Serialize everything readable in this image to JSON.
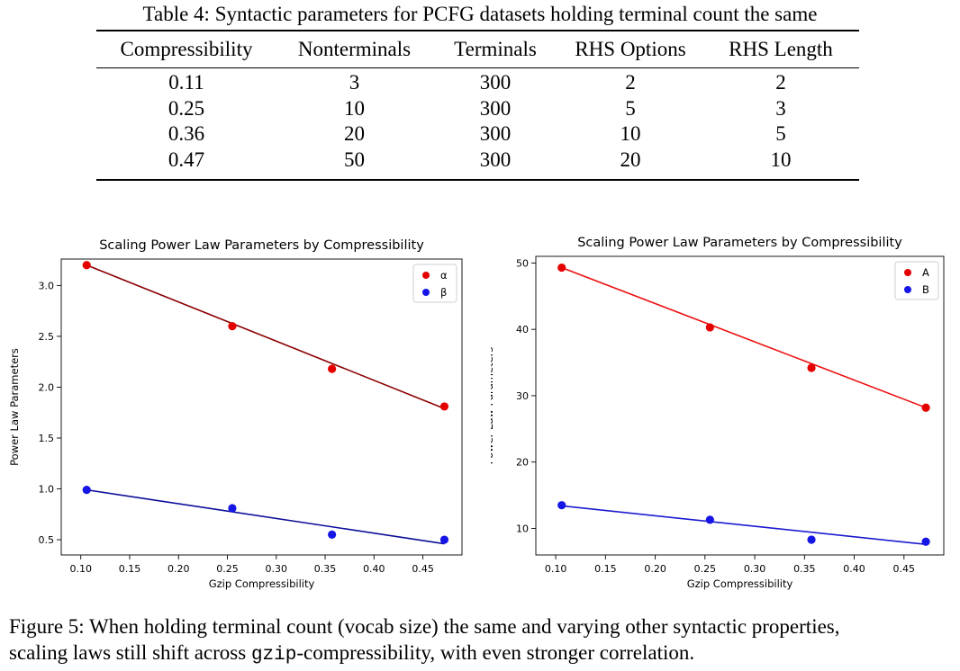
{
  "table": {
    "caption": "Table 4: Syntactic parameters for PCFG datasets holding terminal count the same",
    "headers": [
      "Compressibility",
      "Nonterminals",
      "Terminals",
      "RHS Options",
      "RHS Length"
    ],
    "rows": [
      [
        "0.11",
        "3",
        "300",
        "2",
        "2"
      ],
      [
        "0.25",
        "10",
        "300",
        "5",
        "3"
      ],
      [
        "0.36",
        "20",
        "300",
        "10",
        "5"
      ],
      [
        "0.47",
        "50",
        "300",
        "20",
        "10"
      ]
    ]
  },
  "chart_data": [
    {
      "type": "scatter",
      "title": "Scaling Power Law Parameters by Compressibility",
      "xlabel": "Gzip Compressibility",
      "ylabel": "Power Law Parameters",
      "xlim": [
        0.08,
        0.49
      ],
      "ylim": [
        0.35,
        3.26
      ],
      "xticks": [
        0.1,
        0.15,
        0.2,
        0.25,
        0.3,
        0.35,
        0.4,
        0.45
      ],
      "xtick_labels": [
        "0.10",
        "0.15",
        "0.20",
        "0.25",
        "0.30",
        "0.35",
        "0.40",
        "0.45"
      ],
      "yticks": [
        0.5,
        1.0,
        1.5,
        2.0,
        2.5,
        3.0
      ],
      "ytick_labels": [
        "0.5",
        "1.0",
        "1.5",
        "2.0",
        "2.5",
        "3.0"
      ],
      "legend_position": "top-right",
      "series": [
        {
          "name": "α",
          "x": [
            0.106,
            0.255,
            0.357,
            0.472
          ],
          "y": [
            3.2,
            2.6,
            2.18,
            1.81
          ],
          "color": "#e50000",
          "fit": {
            "x": [
              0.106,
              0.472
            ],
            "y": [
              3.2,
              1.79
            ]
          },
          "fit_color": "#8b0000"
        },
        {
          "name": "β",
          "x": [
            0.106,
            0.255,
            0.357,
            0.472
          ],
          "y": [
            0.99,
            0.81,
            0.55,
            0.5
          ],
          "color": "#1515e6",
          "fit": {
            "x": [
              0.106,
              0.472
            ],
            "y": [
              0.99,
              0.46
            ]
          },
          "fit_color": "#0d0d9a"
        }
      ]
    },
    {
      "type": "scatter",
      "title": "Scaling Power Law Parameters by Compressibility",
      "xlabel": "Gzip Compressibility",
      "ylabel": "Power Law Parameters",
      "xlim": [
        0.08,
        0.49
      ],
      "ylim": [
        6.0,
        51.0
      ],
      "xticks": [
        0.1,
        0.15,
        0.2,
        0.25,
        0.3,
        0.35,
        0.4,
        0.45
      ],
      "xtick_labels": [
        "0.10",
        "0.15",
        "0.20",
        "0.25",
        "0.30",
        "0.35",
        "0.40",
        "0.45"
      ],
      "yticks": [
        10,
        20,
        30,
        40,
        50
      ],
      "ytick_labels": [
        "10",
        "20",
        "30",
        "40",
        "50"
      ],
      "legend_position": "top-right",
      "series": [
        {
          "name": "A",
          "x": [
            0.106,
            0.255,
            0.357,
            0.472
          ],
          "y": [
            49.3,
            40.3,
            34.2,
            28.2
          ],
          "color": "#e50000",
          "fit": {
            "x": [
              0.106,
              0.472
            ],
            "y": [
              49.3,
              28.2
            ]
          },
          "fit_color": "#ee1111"
        },
        {
          "name": "B",
          "x": [
            0.106,
            0.255,
            0.357,
            0.472
          ],
          "y": [
            13.5,
            11.3,
            8.3,
            8.0
          ],
          "color": "#1515e6",
          "fit": {
            "x": [
              0.106,
              0.472
            ],
            "y": [
              13.4,
              7.6
            ]
          },
          "fit_color": "#1a1ad0"
        }
      ]
    }
  ],
  "caption": {
    "part1": "Figure 5: When holding terminal count (vocab size) the same and varying other syntactic properties,",
    "part2": "scaling laws still shift across ",
    "code": "gzip",
    "part3": "-compressibility, with even stronger correlation."
  }
}
